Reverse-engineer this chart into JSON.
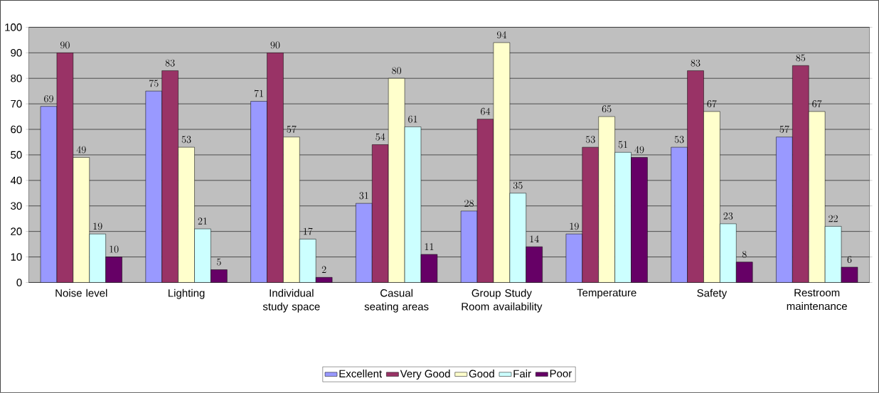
{
  "chart_data": {
    "type": "bar",
    "categories": [
      "Noise level",
      "Lighting",
      "Individual study space",
      "Casual seating areas",
      "Group Study Room availability",
      "Temperature",
      "Safety",
      "Restroom maintenance"
    ],
    "series": [
      {
        "name": "Excellent",
        "color": "#9999ff",
        "values": [
          69,
          75,
          71,
          31,
          28,
          19,
          53,
          57
        ]
      },
      {
        "name": "Very Good",
        "color": "#993366",
        "values": [
          90,
          83,
          90,
          54,
          64,
          53,
          83,
          85
        ]
      },
      {
        "name": "Good",
        "color": "#ffffcc",
        "values": [
          49,
          53,
          57,
          80,
          94,
          65,
          67,
          67
        ]
      },
      {
        "name": "Fair",
        "color": "#ccffff",
        "values": [
          19,
          21,
          17,
          61,
          35,
          51,
          23,
          22
        ]
      },
      {
        "name": "Poor",
        "color": "#660066",
        "values": [
          10,
          5,
          2,
          11,
          14,
          49,
          8,
          6
        ]
      }
    ],
    "ylim": [
      0,
      100
    ],
    "yticks": [
      0,
      10,
      20,
      30,
      40,
      50,
      60,
      70,
      80,
      90,
      100
    ],
    "grid": "y",
    "legend": "bottom",
    "data_labels": true
  }
}
